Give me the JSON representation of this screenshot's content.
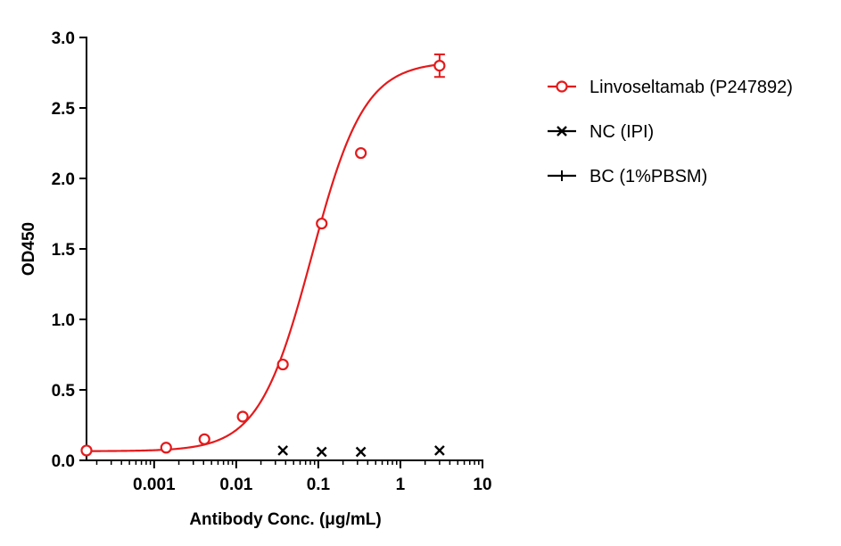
{
  "chart_data": {
    "type": "scatter",
    "title": "",
    "xlabel": "Antibody Conc. (μg/mL)",
    "ylabel": "OD450",
    "x_scale": "log",
    "xlim": [
      0.00015,
      10
    ],
    "ylim": [
      0,
      3.0
    ],
    "x_ticks": [
      {
        "value": 0.001,
        "label": "0.001"
      },
      {
        "value": 0.01,
        "label": "0.01"
      },
      {
        "value": 0.1,
        "label": "0.1"
      },
      {
        "value": 1,
        "label": "1"
      },
      {
        "value": 10,
        "label": "10"
      }
    ],
    "y_ticks": [
      {
        "value": 0,
        "label": "0.0"
      },
      {
        "value": 0.5,
        "label": "0.5"
      },
      {
        "value": 1.0,
        "label": "1.0"
      },
      {
        "value": 1.5,
        "label": "1.5"
      },
      {
        "value": 2.0,
        "label": "2.0"
      },
      {
        "value": 2.5,
        "label": "2.5"
      },
      {
        "value": 3.0,
        "label": "3.0"
      }
    ],
    "grid": false,
    "legend_position": "right",
    "series": [
      {
        "name": "Linvoseltamab (P247892)",
        "color": "#e41a1c",
        "marker": "open-circle",
        "fit_curve": true,
        "x": [
          0.00015,
          0.0014,
          0.0041,
          0.012,
          0.037,
          0.11,
          0.33,
          3.0
        ],
        "y": [
          0.07,
          0.09,
          0.15,
          0.31,
          0.68,
          1.68,
          2.18,
          2.8
        ],
        "error": [
          0,
          0,
          0,
          0,
          0,
          0,
          0,
          0.08
        ]
      },
      {
        "name": "NC (IPI)",
        "color": "#000000",
        "marker": "x",
        "fit_curve": false,
        "x": [
          0.037,
          0.11,
          0.33,
          3.0
        ],
        "y": [
          0.07,
          0.06,
          0.06,
          0.07
        ],
        "error": [
          0,
          0,
          0,
          0
        ]
      },
      {
        "name": "BC (1%PBSM)",
        "color": "#000000",
        "marker": "plus",
        "fit_curve": false,
        "x": [],
        "y": [],
        "error": []
      }
    ]
  }
}
